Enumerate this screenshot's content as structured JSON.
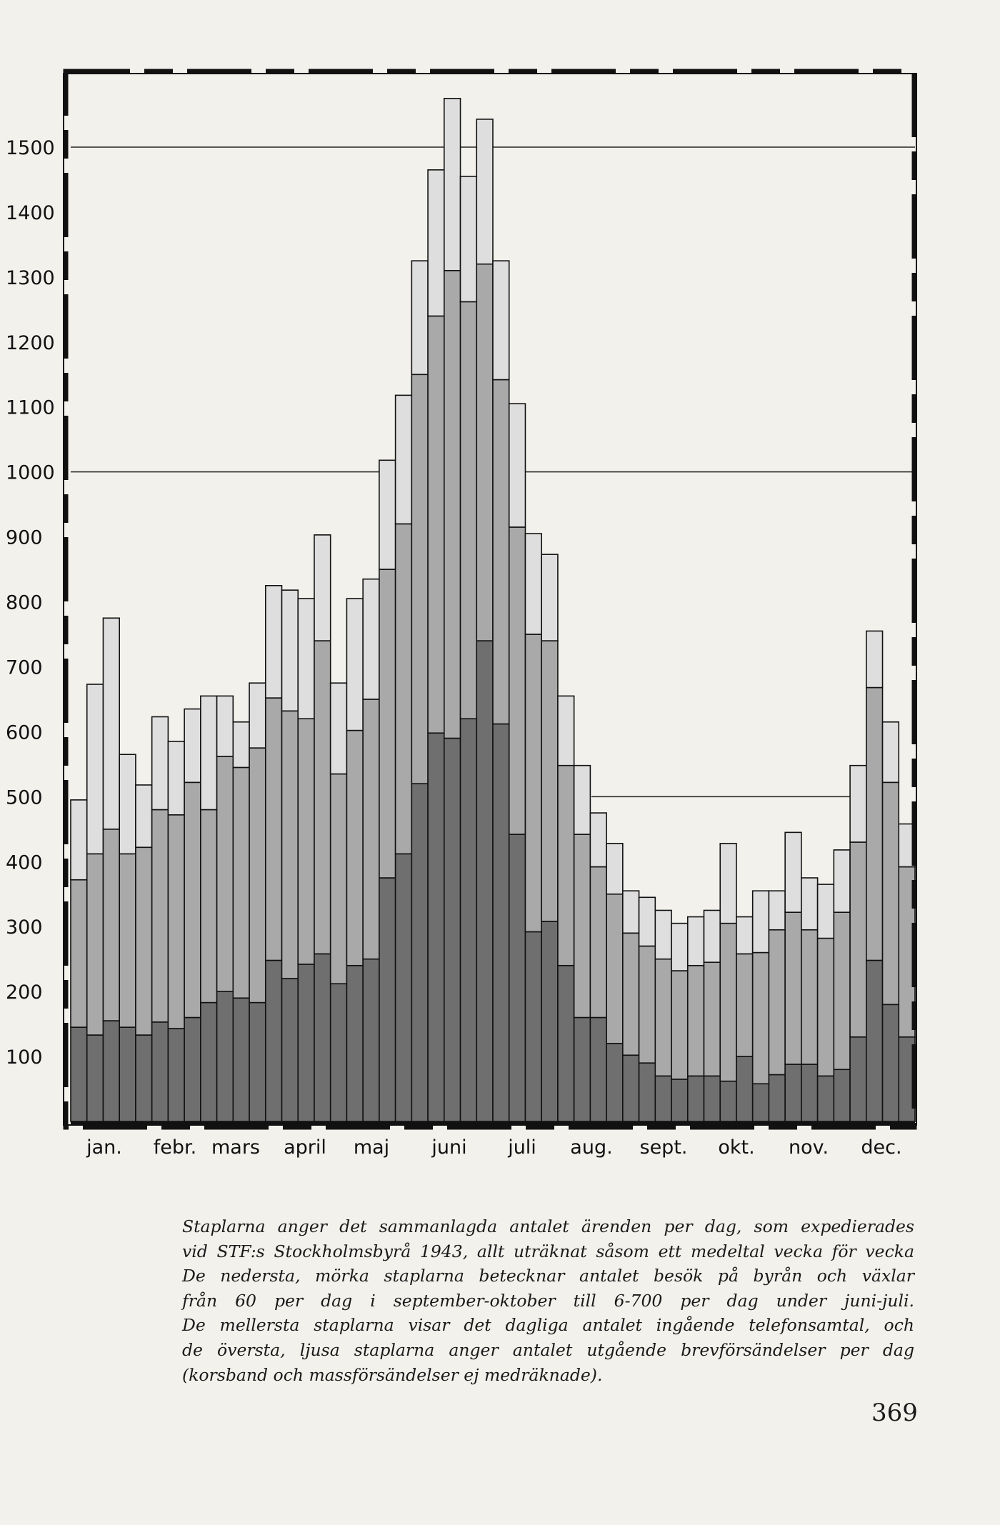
{
  "chart_data": {
    "type": "bar",
    "stacked": true,
    "title": "",
    "xlabel": "",
    "ylabel": "",
    "ylim": [
      0,
      1600
    ],
    "yticks": [
      100,
      200,
      300,
      400,
      500,
      600,
      700,
      800,
      900,
      1000,
      1100,
      1200,
      1300,
      1400,
      1500
    ],
    "reference_lines": [
      1000,
      1500,
      500
    ],
    "months": [
      "jan.",
      "febr.",
      "mars",
      "april",
      "maj",
      "juni",
      "juli",
      "aug.",
      "sept.",
      "okt.",
      "nov.",
      "dec."
    ],
    "weeks": 52,
    "series": [
      {
        "name": "besök på byrån och växlar",
        "color": "#6f6f6f",
        "values": [
          145,
          133,
          155,
          145,
          133,
          153,
          143,
          160,
          183,
          200,
          190,
          183,
          248,
          220,
          242,
          258,
          212,
          240,
          250,
          375,
          412,
          520,
          598,
          590,
          620,
          740,
          612,
          442,
          292,
          308,
          240,
          160,
          160,
          120,
          102,
          90,
          70,
          65,
          70,
          70,
          62,
          100,
          58,
          72,
          88,
          88,
          70,
          80,
          130,
          248,
          180,
          130
        ]
      },
      {
        "name": "ingående telefonsamtal",
        "color": "#a9a9a9",
        "values": [
          227,
          279,
          295,
          267,
          289,
          327,
          329,
          362,
          297,
          362,
          355,
          392,
          404,
          412,
          378,
          482,
          323,
          362,
          400,
          475,
          508,
          630,
          642,
          720,
          642,
          580,
          530,
          473,
          458,
          432,
          308,
          282,
          232,
          230,
          188,
          180,
          180,
          167,
          170,
          175,
          243,
          158,
          202,
          223,
          234,
          207,
          212,
          242,
          300,
          420,
          342,
          262
        ]
      },
      {
        "name": "utgående brevförsändelser",
        "color": "#dedede",
        "values": [
          123,
          261,
          325,
          153,
          96,
          143,
          113,
          113,
          175,
          93,
          70,
          100,
          173,
          186,
          185,
          163,
          140,
          203,
          185,
          168,
          198,
          175,
          225,
          265,
          193,
          223,
          183,
          190,
          155,
          133,
          107,
          106,
          83,
          78,
          65,
          75,
          75,
          73,
          75,
          80,
          123,
          57,
          95,
          60,
          123,
          80,
          83,
          96,
          118,
          87,
          93,
          66
        ]
      }
    ]
  },
  "caption": [
    "Staplarna anger det sammanlagda antalet ärenden per dag, som expedierades",
    "vid STF:s Stockholmsbyrå 1943, allt uträknat såsom ett medeltal vecka för vecka",
    "De nedersta, mörka staplarna betecknar antalet besök på byrån och växlar",
    "från 60 per dag i september-oktober till 6-700 per dag under juni-juli.",
    "De mellersta staplarna visar det dagliga antalet ingående telefonsamtal, och",
    "de översta, ljusa staplarna anger antalet utgående brevförsändelser per dag",
    "(korsband och massförsändelser ej medräknade)."
  ],
  "page_number": "369"
}
